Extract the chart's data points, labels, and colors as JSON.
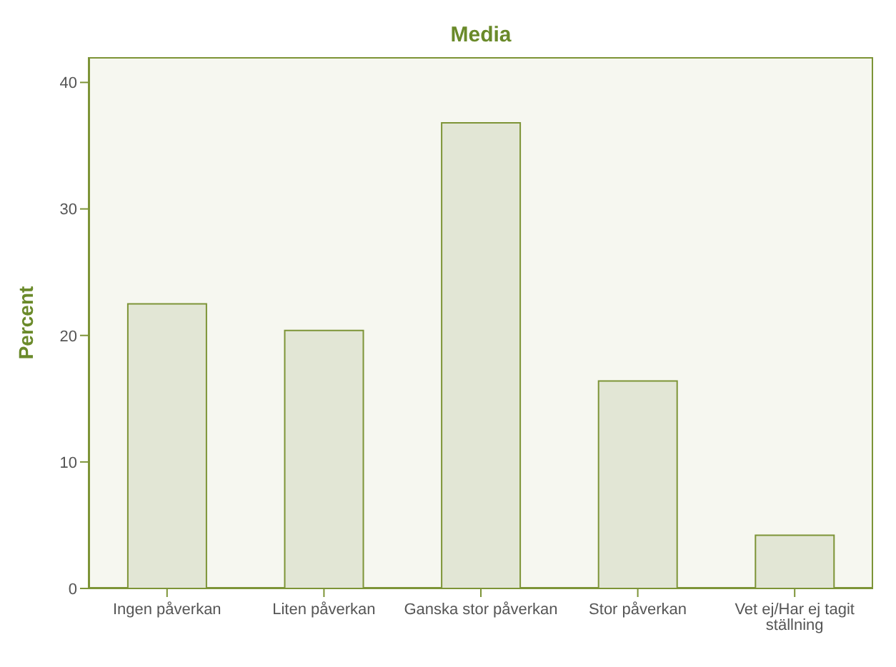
{
  "chart_data": {
    "type": "bar",
    "title": "Media",
    "ylabel": "Percent",
    "categories": [
      "Ingen påverkan",
      "Liten påverkan",
      "Ganska stor påverkan",
      "Stor påverkan",
      "Vet ej/Har ej tagit ställning"
    ],
    "values": [
      22.5,
      20.4,
      36.8,
      16.4,
      4.2
    ],
    "color": "#e2e6d5",
    "ylim": [
      0,
      42
    ],
    "yticks": [
      0,
      10,
      20,
      30,
      40
    ],
    "grid": false,
    "legend": false
  }
}
